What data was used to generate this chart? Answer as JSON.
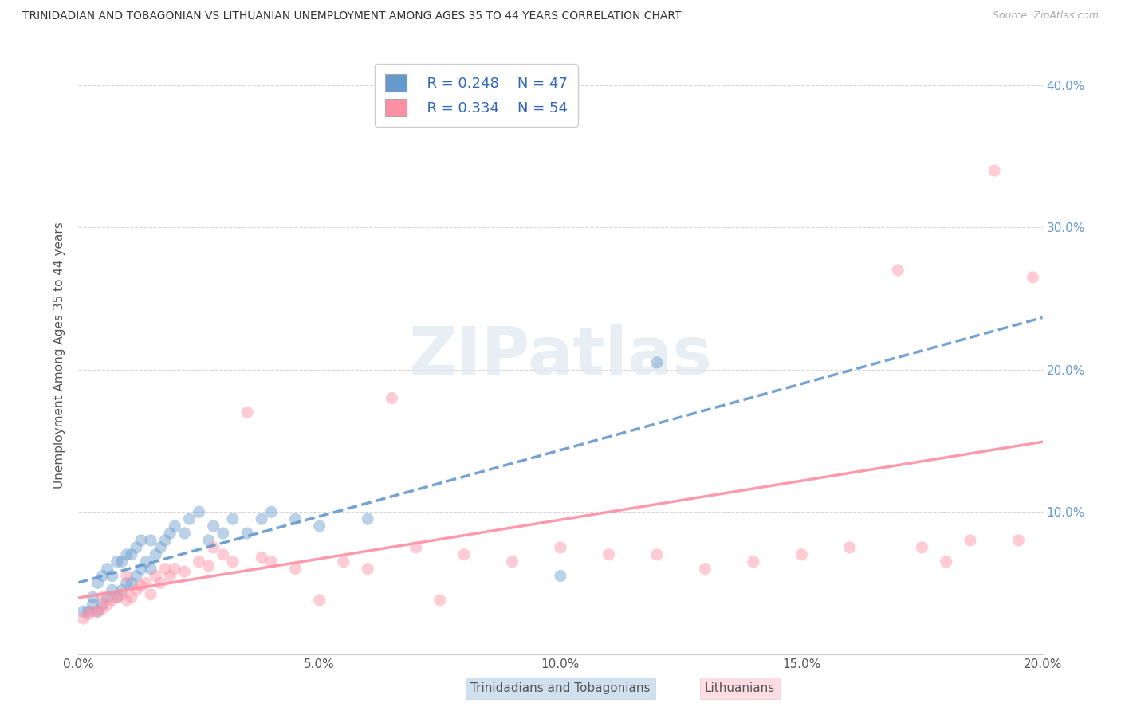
{
  "title": "TRINIDADIAN AND TOBAGONIAN VS LITHUANIAN UNEMPLOYMENT AMONG AGES 35 TO 44 YEARS CORRELATION CHART",
  "source": "Source: ZipAtlas.com",
  "ylabel": "Unemployment Among Ages 35 to 44 years",
  "xlim": [
    0.0,
    0.2
  ],
  "ylim": [
    0.0,
    0.42
  ],
  "xticks": [
    0.0,
    0.05,
    0.1,
    0.15,
    0.2
  ],
  "yticks": [
    0.0,
    0.1,
    0.2,
    0.3,
    0.4
  ],
  "xtick_labels": [
    "0.0%",
    "5.0%",
    "10.0%",
    "15.0%",
    "20.0%"
  ],
  "ytick_labels": [
    "",
    "10.0%",
    "20.0%",
    "30.0%",
    "40.0%"
  ],
  "background_color": "#ffffff",
  "legend_r1": "R = 0.248",
  "legend_n1": "N = 47",
  "legend_r2": "R = 0.334",
  "legend_n2": "N = 54",
  "blue_color": "#6699cc",
  "pink_color": "#ff8fa3",
  "blue_scatter_x": [
    0.001,
    0.002,
    0.003,
    0.003,
    0.004,
    0.004,
    0.005,
    0.005,
    0.006,
    0.006,
    0.007,
    0.007,
    0.008,
    0.008,
    0.009,
    0.009,
    0.01,
    0.01,
    0.011,
    0.011,
    0.012,
    0.012,
    0.013,
    0.013,
    0.014,
    0.015,
    0.015,
    0.016,
    0.017,
    0.018,
    0.019,
    0.02,
    0.022,
    0.023,
    0.025,
    0.027,
    0.028,
    0.03,
    0.032,
    0.035,
    0.038,
    0.04,
    0.045,
    0.05,
    0.06,
    0.1,
    0.12
  ],
  "blue_scatter_y": [
    0.03,
    0.03,
    0.035,
    0.04,
    0.03,
    0.05,
    0.035,
    0.055,
    0.04,
    0.06,
    0.045,
    0.055,
    0.04,
    0.065,
    0.045,
    0.065,
    0.05,
    0.07,
    0.05,
    0.07,
    0.055,
    0.075,
    0.06,
    0.08,
    0.065,
    0.06,
    0.08,
    0.07,
    0.075,
    0.08,
    0.085,
    0.09,
    0.085,
    0.095,
    0.1,
    0.08,
    0.09,
    0.085,
    0.095,
    0.085,
    0.095,
    0.1,
    0.095,
    0.09,
    0.095,
    0.055,
    0.205
  ],
  "pink_scatter_x": [
    0.001,
    0.002,
    0.003,
    0.004,
    0.005,
    0.005,
    0.006,
    0.007,
    0.008,
    0.009,
    0.01,
    0.01,
    0.011,
    0.012,
    0.013,
    0.014,
    0.015,
    0.016,
    0.017,
    0.018,
    0.019,
    0.02,
    0.022,
    0.025,
    0.027,
    0.028,
    0.03,
    0.032,
    0.035,
    0.038,
    0.04,
    0.045,
    0.05,
    0.055,
    0.06,
    0.065,
    0.07,
    0.075,
    0.08,
    0.09,
    0.1,
    0.11,
    0.12,
    0.13,
    0.14,
    0.15,
    0.16,
    0.17,
    0.175,
    0.18,
    0.185,
    0.19,
    0.195,
    0.198
  ],
  "pink_scatter_y": [
    0.025,
    0.028,
    0.03,
    0.03,
    0.032,
    0.04,
    0.035,
    0.038,
    0.04,
    0.042,
    0.038,
    0.055,
    0.04,
    0.045,
    0.048,
    0.05,
    0.042,
    0.055,
    0.05,
    0.06,
    0.055,
    0.06,
    0.058,
    0.065,
    0.062,
    0.075,
    0.07,
    0.065,
    0.17,
    0.068,
    0.065,
    0.06,
    0.038,
    0.065,
    0.06,
    0.18,
    0.075,
    0.038,
    0.07,
    0.065,
    0.075,
    0.07,
    0.07,
    0.06,
    0.065,
    0.07,
    0.075,
    0.27,
    0.075,
    0.065,
    0.08,
    0.34,
    0.08,
    0.265
  ]
}
